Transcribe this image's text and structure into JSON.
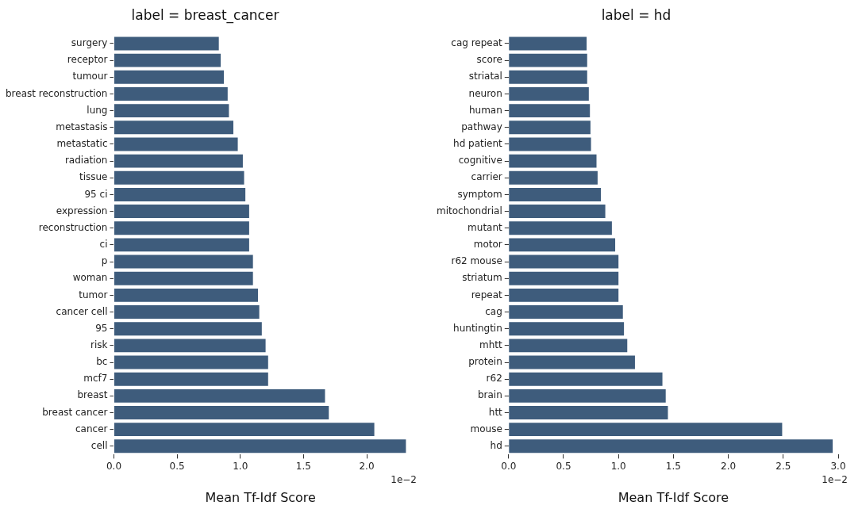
{
  "chart_data": [
    {
      "type": "bar",
      "orientation": "horizontal",
      "title": "label = breast_cancer",
      "xlabel": "Mean Tf-Idf Score",
      "color": "#3e5c7c",
      "grid": false,
      "categories": [
        "surgery",
        "receptor",
        "tumour",
        "breast reconstruction",
        "lung",
        "metastasis",
        "metastatic",
        "radiation",
        "tissue",
        "95 ci",
        "expression",
        "reconstruction",
        "ci",
        "p",
        "woman",
        "tumor",
        "cancer cell",
        "95",
        "risk",
        "bc",
        "mcf7",
        "breast",
        "breast cancer",
        "cancer",
        "cell"
      ],
      "values": [
        0.83,
        0.845,
        0.87,
        0.9,
        0.91,
        0.945,
        0.98,
        1.02,
        1.03,
        1.04,
        1.07,
        1.07,
        1.07,
        1.1,
        1.1,
        1.14,
        1.15,
        1.17,
        1.2,
        1.22,
        1.22,
        1.67,
        1.7,
        2.06,
        2.31
      ],
      "xlim": [
        0,
        2.32
      ],
      "xticks": [
        {
          "value": 0,
          "label": "0.0"
        },
        0.5,
        {
          "value": 1,
          "label": "1.0"
        },
        1.5,
        {
          "value": 2,
          "label": "2.0"
        }
      ],
      "annotations": [
        "1e−2"
      ]
    },
    {
      "type": "bar",
      "orientation": "horizontal",
      "title": "label = hd",
      "xlabel": "Mean Tf-Idf Score",
      "color": "#3e5c7c",
      "grid": false,
      "categories": [
        "cag repeat",
        "score",
        "striatal",
        "neuron",
        "human",
        "pathway",
        "hd patient",
        "cognitive",
        "carrier",
        "symptom",
        "mitochondrial",
        "mutant",
        "motor",
        "r62 mouse",
        "striatum",
        "repeat",
        "cag",
        "huntingtin",
        "mhtt",
        "protein",
        "r62",
        "brain",
        "htt",
        "mouse",
        "hd"
      ],
      "values": [
        0.71,
        0.715,
        0.715,
        0.73,
        0.74,
        0.745,
        0.75,
        0.8,
        0.81,
        0.84,
        0.88,
        0.94,
        0.97,
        1.0,
        1.0,
        1.0,
        1.04,
        1.05,
        1.08,
        1.15,
        1.4,
        1.43,
        1.45,
        2.49,
        2.95
      ],
      "xlim": [
        0,
        3.0
      ],
      "xticks": [
        {
          "value": 0,
          "label": "0.0"
        },
        0.5,
        {
          "value": 1,
          "label": "1.0"
        },
        1.5,
        {
          "value": 2,
          "label": "2.0"
        },
        2.5,
        {
          "value": 3,
          "label": "3.0"
        }
      ],
      "annotations": [
        "1e−2"
      ]
    }
  ]
}
